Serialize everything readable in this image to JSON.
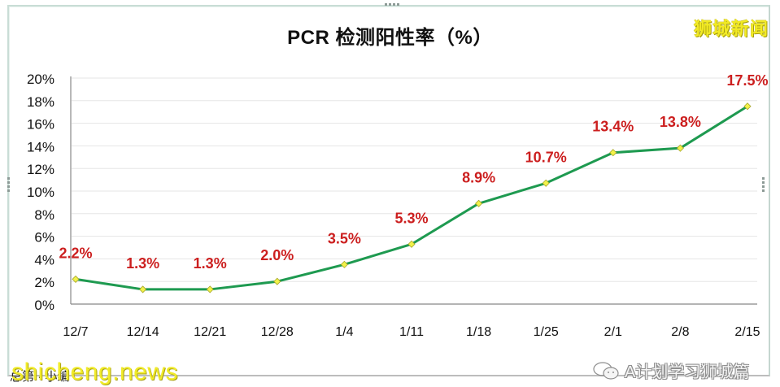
{
  "title": "PCR 检测阳性率（%）",
  "brand": "狮城新闻",
  "watermarks": {
    "left": "shicheng.news",
    "left_underlay": "总第 · 小编",
    "right": "A计划学习狮城篇",
    "right_icon": "wechat-icon"
  },
  "colors": {
    "line": "#1e9a50",
    "marker": "#f2f24a",
    "marker_border": "#a6a62a",
    "label": "#cc1f1f",
    "grid": "#e6e6e6",
    "axis": "#888888",
    "brand": "#f2ea24"
  },
  "y_axis": {
    "ticks": [
      "20%",
      "18%",
      "16%",
      "14%",
      "12%",
      "10%",
      "8%",
      "6%",
      "4%",
      "2%",
      "0%"
    ]
  },
  "x_axis": {
    "ticks": [
      "12/7",
      "12/14",
      "12/21",
      "12/28",
      "1/4",
      "1/11",
      "1/18",
      "1/25",
      "2/1",
      "2/8",
      "2/15"
    ]
  },
  "data_labels": [
    "2.2%",
    "1.3%",
    "1.3%",
    "2.0%",
    "3.5%",
    "5.3%",
    "8.9%",
    "10.7%",
    "13.4%",
    "13.8%",
    "17.5%"
  ],
  "chart_data": {
    "type": "line",
    "title": "PCR 检测阳性率（%）",
    "xlabel": "",
    "ylabel": "",
    "categories": [
      "12/7",
      "12/14",
      "12/21",
      "12/28",
      "1/4",
      "1/11",
      "1/18",
      "1/25",
      "2/1",
      "2/8",
      "2/15"
    ],
    "series": [
      {
        "name": "PCR 检测阳性率",
        "values": [
          2.2,
          1.3,
          1.3,
          2.0,
          3.5,
          5.3,
          8.9,
          10.7,
          13.4,
          13.8,
          17.5
        ],
        "color": "#1e9a50",
        "marker": "diamond"
      }
    ],
    "ylim": [
      0,
      20
    ],
    "y_ticks": [
      0,
      2,
      4,
      6,
      8,
      10,
      12,
      14,
      16,
      18,
      20
    ],
    "y_tick_format": "percent",
    "grid": true,
    "legend": false,
    "data_labels": true
  }
}
